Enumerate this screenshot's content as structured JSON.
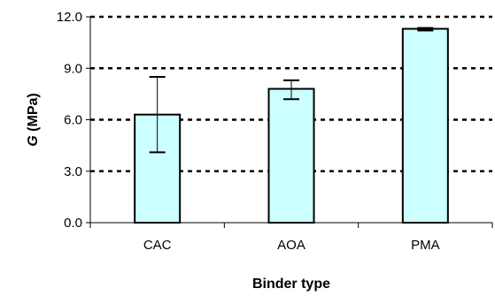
{
  "chart_data": {
    "type": "bar",
    "title": "",
    "xlabel": "Binder type",
    "ylabel_symbol": "G",
    "ylabel_unit": " (MPa)",
    "categories": [
      "CAC",
      "AOA",
      "PMA"
    ],
    "values": [
      6.3,
      7.8,
      11.3
    ],
    "error_low": [
      4.1,
      7.2,
      11.2
    ],
    "error_high": [
      8.5,
      8.3,
      11.35
    ],
    "ylim": [
      0,
      12
    ],
    "yticks": [
      0,
      3,
      6,
      9,
      12
    ],
    "ytick_labels": [
      "0.0",
      "3.0",
      "6.0",
      "9.0",
      "12.0"
    ],
    "grid": "horizontal dashed",
    "legend": "none",
    "colors": {
      "bar_fill": "#ccffff",
      "bar_stroke": "#000000",
      "grid": "#000000",
      "axis": "#000000"
    }
  }
}
